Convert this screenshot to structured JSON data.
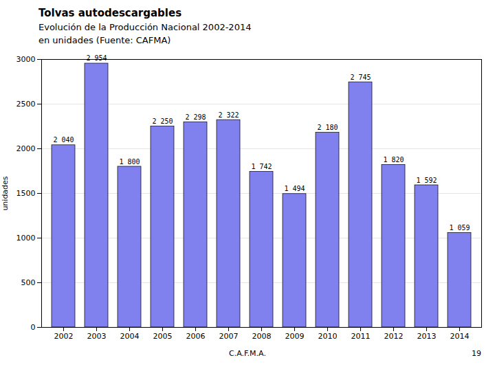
{
  "chart_data": {
    "type": "bar",
    "title": "Tolvas autodescargables",
    "subtitle": [
      "Evolución de la Producción Nacional 2002-2014",
      "en unidades (Fuente: CAFMA)"
    ],
    "annotations": [
      "C.A.F.M.A.",
      "19"
    ],
    "ylabel": "unidades",
    "categories": [
      "2002",
      "2003",
      "2004",
      "2005",
      "2006",
      "2007",
      "2008",
      "2009",
      "2010",
      "2011",
      "2012",
      "2013",
      "2014"
    ],
    "values": [
      2040,
      2954,
      1800,
      2250,
      2298,
      2322,
      1742,
      1494,
      2180,
      2745,
      1820,
      1592,
      1059
    ],
    "value_labels": [
      "2 040",
      "2 954",
      "1 800",
      "2 250",
      "2 298",
      "2 322",
      "1 742",
      "1 494",
      "2 180",
      "2 745",
      "1 820",
      "1 592",
      "1 059"
    ],
    "data_labels": true,
    "color": "#8080EE",
    "ylim": [
      0,
      3000
    ],
    "yticks": [
      0,
      500,
      1000,
      1500,
      2000,
      2500,
      3000
    ],
    "grid": true
  }
}
